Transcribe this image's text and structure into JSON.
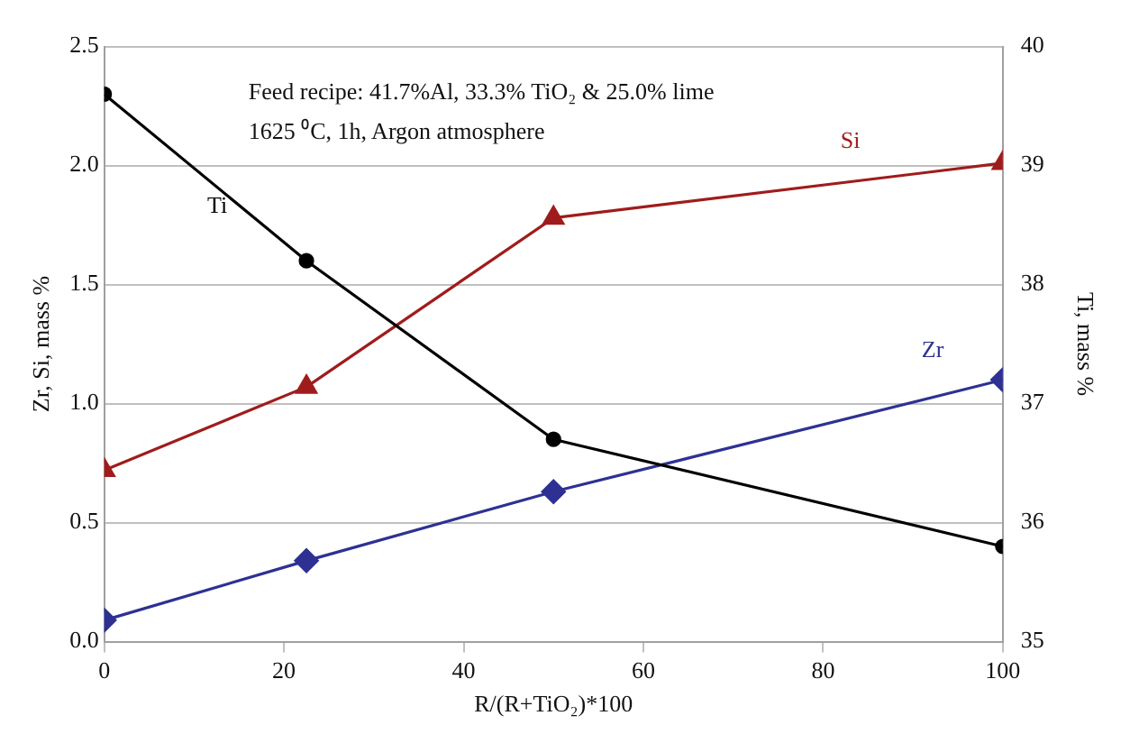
{
  "chart_data": {
    "type": "line",
    "x": [
      0,
      22.5,
      50,
      100
    ],
    "series": [
      {
        "name": "Ti",
        "color": "#000000",
        "axis": "y2",
        "marker": "circle",
        "values": [
          39.6,
          38.2,
          36.7,
          35.8
        ]
      },
      {
        "name": "Si",
        "color": "#a01c1c",
        "marker": "triangle",
        "values": [
          0.72,
          1.07,
          1.78,
          2.01
        ]
      },
      {
        "name": "Zr",
        "color": "#2e3192",
        "marker": "diamond",
        "values": [
          0.09,
          0.34,
          0.63,
          1.1
        ]
      }
    ],
    "xlabel": "R/(R+TiO₂)*100",
    "ylabel": "Zr, Si, mass %",
    "y2label": "Ti, mass %",
    "xlim": [
      0,
      100
    ],
    "xticks": [
      0,
      20,
      40,
      60,
      80,
      100
    ],
    "ylim": [
      0,
      2.5
    ],
    "yticks": [
      {
        "value": 0,
        "label": "0.0"
      },
      {
        "value": 0.5,
        "label": "0.5"
      },
      {
        "value": 1,
        "label": "1.0"
      },
      {
        "value": 1.5,
        "label": "1.5"
      },
      {
        "value": 2,
        "label": "2.0"
      },
      {
        "value": 2.5,
        "label": "2.5"
      }
    ],
    "y2lim": [
      35,
      40
    ],
    "y2ticks": [
      35,
      36,
      37,
      38,
      39,
      40
    ],
    "grid": "y",
    "annotations": [
      "Feed recipe: 41.7%Al, 33.3% TiO₂ & 25.0% lime",
      "1625 ⁰C, 1h, Argon atmosphere"
    ]
  }
}
